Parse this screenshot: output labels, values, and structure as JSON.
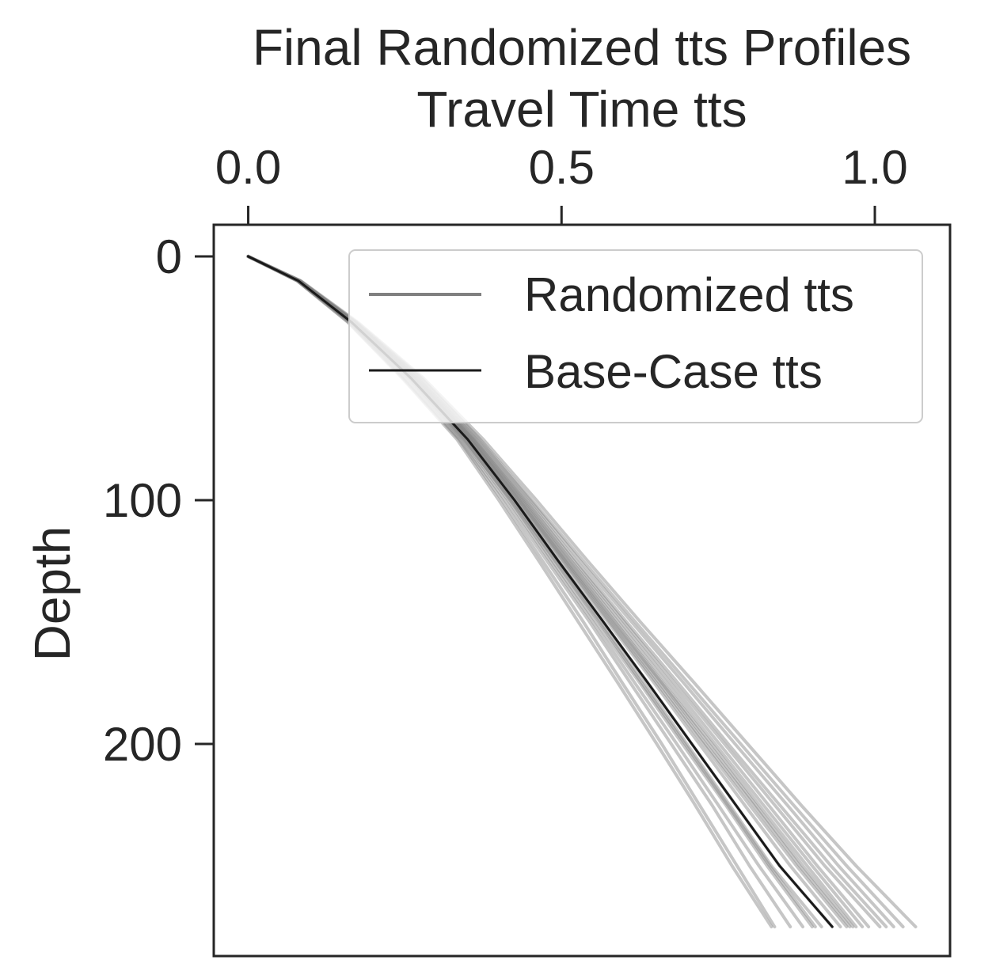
{
  "chart_data": {
    "type": "line",
    "title": "Final Randomized tts Profiles",
    "xlabel": "Travel Time tts",
    "ylabel": "Depth",
    "x_axis_position": "top",
    "y_axis_inverted": true,
    "xlim": [
      -0.055,
      1.12
    ],
    "ylim": [
      -13,
      287
    ],
    "xticks": [
      0.0,
      0.5,
      1.0
    ],
    "xtick_labels": [
      "0.0",
      "0.5",
      "1.0"
    ],
    "yticks": [
      0,
      100,
      200
    ],
    "ytick_labels": [
      "0",
      "100",
      "200"
    ],
    "grid": false,
    "legend": {
      "placement": "top-right",
      "entries": [
        {
          "label": "Randomized tts",
          "color": "#808080"
        },
        {
          "label": "Base-Case tts",
          "color": "#1a1a1a"
        }
      ]
    },
    "depth": [
      0,
      10,
      27,
      50,
      75,
      100,
      125,
      150,
      175,
      200,
      225,
      250,
      275
    ],
    "base_case": {
      "name": "Base-Case tts",
      "color": "#1a1a1a",
      "x": [
        0.0,
        0.08,
        0.165,
        0.26,
        0.35,
        0.425,
        0.495,
        0.567,
        0.638,
        0.708,
        0.778,
        0.848,
        0.932
      ]
    },
    "randomized": {
      "name": "Randomized tts",
      "color": "#808080",
      "series": [
        [
          0.0,
          0.08,
          0.165,
          0.26,
          0.35,
          0.425,
          0.495,
          0.567,
          0.638,
          0.708,
          0.778,
          0.848,
          0.932
        ],
        [
          0.0,
          0.082,
          0.17,
          0.27,
          0.362,
          0.443,
          0.52,
          0.6,
          0.68,
          0.76,
          0.84,
          0.92,
          1.008
        ],
        [
          0.0,
          0.079,
          0.162,
          0.25,
          0.338,
          0.41,
          0.477,
          0.545,
          0.61,
          0.675,
          0.74,
          0.8,
          0.865
        ],
        [
          0.0,
          0.081,
          0.167,
          0.265,
          0.355,
          0.433,
          0.507,
          0.583,
          0.66,
          0.735,
          0.81,
          0.885,
          0.965
        ],
        [
          0.0,
          0.08,
          0.164,
          0.258,
          0.345,
          0.418,
          0.486,
          0.555,
          0.625,
          0.693,
          0.762,
          0.828,
          0.9
        ],
        [
          0.0,
          0.083,
          0.172,
          0.275,
          0.368,
          0.45,
          0.53,
          0.612,
          0.695,
          0.777,
          0.86,
          0.942,
          1.03
        ],
        [
          0.0,
          0.078,
          0.16,
          0.248,
          0.336,
          0.405,
          0.47,
          0.535,
          0.597,
          0.66,
          0.72,
          0.78,
          0.84
        ],
        [
          0.0,
          0.082,
          0.169,
          0.268,
          0.358,
          0.438,
          0.513,
          0.59,
          0.668,
          0.745,
          0.822,
          0.9,
          0.98
        ],
        [
          0.0,
          0.084,
          0.175,
          0.28,
          0.375,
          0.46,
          0.542,
          0.626,
          0.712,
          0.797,
          0.882,
          0.97,
          1.065
        ],
        [
          0.0,
          0.08,
          0.166,
          0.262,
          0.348,
          0.422,
          0.492,
          0.562,
          0.632,
          0.7,
          0.768,
          0.835,
          0.915
        ],
        [
          0.0,
          0.079,
          0.163,
          0.255,
          0.342,
          0.415,
          0.482,
          0.55,
          0.617,
          0.684,
          0.75,
          0.815,
          0.885
        ],
        [
          0.0,
          0.081,
          0.168,
          0.266,
          0.357,
          0.436,
          0.51,
          0.586,
          0.662,
          0.74,
          0.815,
          0.892,
          0.97
        ],
        [
          0.0,
          0.082,
          0.171,
          0.272,
          0.364,
          0.446,
          0.524,
          0.604,
          0.686,
          0.766,
          0.848,
          0.93,
          1.018
        ],
        [
          0.0,
          0.08,
          0.165,
          0.26,
          0.35,
          0.427,
          0.5,
          0.574,
          0.648,
          0.72,
          0.792,
          0.865,
          0.945
        ],
        [
          0.0,
          0.083,
          0.173,
          0.277,
          0.37,
          0.453,
          0.535,
          0.618,
          0.702,
          0.786,
          0.87,
          0.955,
          1.045
        ],
        [
          0.0,
          0.078,
          0.159,
          0.246,
          0.333,
          0.4,
          0.464,
          0.527,
          0.59,
          0.652,
          0.713,
          0.772,
          0.835
        ],
        [
          0.0,
          0.081,
          0.166,
          0.263,
          0.352,
          0.43,
          0.503,
          0.577,
          0.652,
          0.726,
          0.8,
          0.875,
          0.955
        ],
        [
          0.0,
          0.082,
          0.17,
          0.27,
          0.36,
          0.44,
          0.516,
          0.595,
          0.674,
          0.752,
          0.83,
          0.908,
          0.99
        ],
        [
          0.0,
          0.079,
          0.164,
          0.257,
          0.344,
          0.42,
          0.49,
          0.56,
          0.628,
          0.697,
          0.765,
          0.832,
          0.905
        ],
        [
          0.0,
          0.08,
          0.167,
          0.264,
          0.354,
          0.432,
          0.506,
          0.58,
          0.656,
          0.73,
          0.806,
          0.88,
          0.96
        ]
      ]
    }
  }
}
